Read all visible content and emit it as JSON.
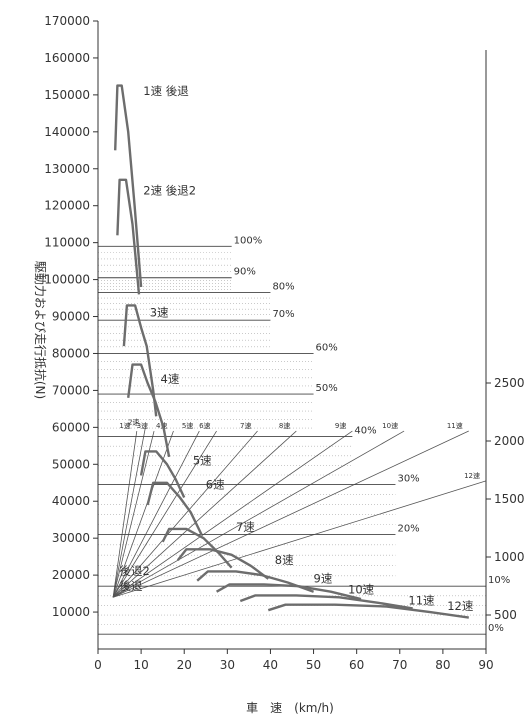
{
  "chart_data": {
    "type": "line",
    "title": "",
    "xlabel": "車　速　(km/h)",
    "ylabel": "駆動力および走行抵抗(N)",
    "xlim": [
      0,
      90
    ],
    "ylim": [
      0,
      170000
    ],
    "x_ticks": [
      0,
      10,
      20,
      30,
      40,
      50,
      60,
      70,
      80,
      90
    ],
    "y_ticks": [
      10000,
      20000,
      30000,
      40000,
      50000,
      60000,
      70000,
      80000,
      90000,
      100000,
      110000,
      120000,
      130000,
      140000,
      150000,
      160000,
      170000
    ],
    "right_ticks": [
      "500",
      "1000",
      "1500",
      "2000",
      "2500"
    ],
    "grid": false,
    "drive_series": [
      {
        "name": "1速 後退",
        "points": [
          [
            4.0,
            135000
          ],
          [
            4.5,
            152500
          ],
          [
            5.5,
            152500
          ],
          [
            7.0,
            140000
          ],
          [
            8.5,
            120000
          ],
          [
            10.0,
            98000
          ]
        ]
      },
      {
        "name": "2速 後退2",
        "points": [
          [
            4.5,
            112000
          ],
          [
            5.0,
            127000
          ],
          [
            6.5,
            127000
          ],
          [
            8.0,
            115000
          ],
          [
            9.5,
            96000
          ]
        ]
      },
      {
        "name": "3速",
        "points": [
          [
            6.0,
            82000
          ],
          [
            6.7,
            93000
          ],
          [
            8.6,
            93000
          ],
          [
            10.0,
            87000
          ],
          [
            11.3,
            82000
          ],
          [
            12.8,
            70000
          ],
          [
            13.5,
            63000
          ]
        ]
      },
      {
        "name": "4速",
        "points": [
          [
            7.0,
            68000
          ],
          [
            8.0,
            77000
          ],
          [
            10.0,
            77000
          ],
          [
            11.5,
            72000
          ],
          [
            13.3,
            67000
          ],
          [
            15.2,
            60000
          ],
          [
            16.5,
            52000
          ]
        ]
      },
      {
        "name": "5速",
        "points": [
          [
            10.0,
            47000
          ],
          [
            11.0,
            53500
          ],
          [
            13.5,
            53500
          ],
          [
            16.0,
            50000
          ],
          [
            18.0,
            46000
          ],
          [
            20.0,
            41000
          ]
        ]
      },
      {
        "name": "6速",
        "points": [
          [
            11.5,
            39000
          ],
          [
            12.8,
            45000
          ],
          [
            16.0,
            45000
          ],
          [
            19.0,
            41000
          ],
          [
            21.5,
            37000
          ],
          [
            24.0,
            31000
          ]
        ]
      },
      {
        "name": "7速",
        "points": [
          [
            15.0,
            29000
          ],
          [
            16.5,
            32500
          ],
          [
            20.5,
            32500
          ],
          [
            24.5,
            30000
          ],
          [
            28.0,
            26000
          ],
          [
            31.0,
            22000
          ]
        ]
      },
      {
        "name": "8速",
        "points": [
          [
            18.5,
            24000
          ],
          [
            20.5,
            27000
          ],
          [
            26.0,
            27000
          ],
          [
            31.0,
            25500
          ],
          [
            35.5,
            22500
          ],
          [
            39.5,
            19000
          ]
        ]
      },
      {
        "name": "9速",
        "points": [
          [
            23.0,
            18500
          ],
          [
            25.5,
            21000
          ],
          [
            32.0,
            21000
          ],
          [
            38.0,
            20000
          ],
          [
            44.0,
            18000
          ],
          [
            50.0,
            15500
          ]
        ]
      },
      {
        "name": "10速",
        "points": [
          [
            27.5,
            15500
          ],
          [
            30.5,
            17500
          ],
          [
            38.5,
            17500
          ],
          [
            46.5,
            17000
          ],
          [
            54.0,
            15500
          ],
          [
            61.0,
            13500
          ]
        ]
      },
      {
        "name": "11速",
        "points": [
          [
            33.0,
            13000
          ],
          [
            36.5,
            14500
          ],
          [
            46.0,
            14500
          ],
          [
            56.0,
            14000
          ],
          [
            65.0,
            12500
          ],
          [
            73.0,
            11000
          ]
        ]
      },
      {
        "name": "12速",
        "points": [
          [
            39.5,
            10500
          ],
          [
            43.5,
            12000
          ],
          [
            55.0,
            12000
          ],
          [
            67.0,
            11500
          ],
          [
            77.0,
            10000
          ],
          [
            86.0,
            8500
          ]
        ]
      }
    ],
    "resistance_lines": [
      {
        "label": "100%",
        "y": 109000,
        "x_end": 31
      },
      {
        "label": "90%",
        "y": 100500,
        "x_end": 31
      },
      {
        "label": "80%",
        "y": 96500,
        "x_end": 40
      },
      {
        "label": "70%",
        "y": 89000,
        "x_end": 40
      },
      {
        "label": "60%",
        "y": 80000,
        "x_end": 50
      },
      {
        "label": "50%",
        "y": 69000,
        "x_end": 50
      },
      {
        "label": "40%",
        "y": 57500,
        "x_end": 59
      },
      {
        "label": "30%",
        "y": 44500,
        "x_end": 69
      },
      {
        "label": "20%",
        "y": 31000,
        "x_end": 69
      },
      {
        "label": "10%",
        "y": 17000,
        "x_end": 90
      },
      {
        "label": "0%",
        "y": 4000,
        "x_end": 90
      }
    ],
    "speed_lines": [
      {
        "label": "1速",
        "x_top": 9,
        "y_top": 59000
      },
      {
        "label": "2速",
        "x_top": 11,
        "y_top": 60000
      },
      {
        "label": "3速",
        "x_top": 13,
        "y_top": 59000
      },
      {
        "label": "4速",
        "x_top": 17.5,
        "y_top": 59000
      },
      {
        "label": "5速",
        "x_top": 23.5,
        "y_top": 59000
      },
      {
        "label": "6速",
        "x_top": 27.5,
        "y_top": 59000
      },
      {
        "label": "7速",
        "x_top": 37,
        "y_top": 59000
      },
      {
        "label": "8速",
        "x_top": 46,
        "y_top": 59000
      },
      {
        "label": "9速",
        "x_top": 59,
        "y_top": 59000
      },
      {
        "label": "10速",
        "x_top": 71,
        "y_top": 59000
      },
      {
        "label": "11速",
        "x_top": 86,
        "y_top": 59000
      },
      {
        "label": "12速",
        "x_top": 90,
        "y_top": 45500
      }
    ],
    "extra_labels": [
      "後退2",
      "後退"
    ]
  }
}
